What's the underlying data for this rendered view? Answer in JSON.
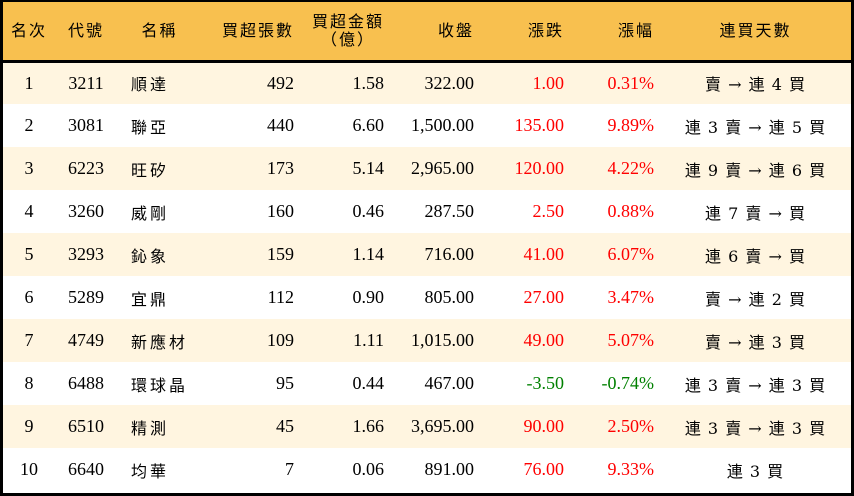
{
  "header": {
    "rank": "名次",
    "code": "代號",
    "name": "名稱",
    "net_buy_lots": "買超張數",
    "net_buy_amount_line1": "買超金額",
    "net_buy_amount_line2": "（億）",
    "close": "收盤",
    "change": "漲跌",
    "change_pct": "漲幅",
    "consecutive_days": "連買天數"
  },
  "colors": {
    "header_bg": "#f8c04f",
    "row_odd_bg": "#fff5e0",
    "row_even_bg": "#ffffff",
    "up": "#ff0000",
    "down": "#008000"
  },
  "rows": [
    {
      "rank": "1",
      "code": "3211",
      "name": "順達",
      "lots": "492",
      "amount": "1.58",
      "close": "322.00",
      "change": "1.00",
      "pct": "0.31%",
      "dir": "up",
      "streak": "賣 → 連 4 買"
    },
    {
      "rank": "2",
      "code": "3081",
      "name": "聯亞",
      "lots": "440",
      "amount": "6.60",
      "close": "1,500.00",
      "change": "135.00",
      "pct": "9.89%",
      "dir": "up",
      "streak": "連 3 賣 → 連 5 買"
    },
    {
      "rank": "3",
      "code": "6223",
      "name": "旺矽",
      "lots": "173",
      "amount": "5.14",
      "close": "2,965.00",
      "change": "120.00",
      "pct": "4.22%",
      "dir": "up",
      "streak": "連 9 賣 → 連 6 買"
    },
    {
      "rank": "4",
      "code": "3260",
      "name": "威剛",
      "lots": "160",
      "amount": "0.46",
      "close": "287.50",
      "change": "2.50",
      "pct": "0.88%",
      "dir": "up",
      "streak": "連 7 賣 → 買"
    },
    {
      "rank": "5",
      "code": "3293",
      "name": "鈊象",
      "lots": "159",
      "amount": "1.14",
      "close": "716.00",
      "change": "41.00",
      "pct": "6.07%",
      "dir": "up",
      "streak": "連 6 賣 → 買"
    },
    {
      "rank": "6",
      "code": "5289",
      "name": "宜鼎",
      "lots": "112",
      "amount": "0.90",
      "close": "805.00",
      "change": "27.00",
      "pct": "3.47%",
      "dir": "up",
      "streak": "賣 → 連 2 買"
    },
    {
      "rank": "7",
      "code": "4749",
      "name": "新應材",
      "lots": "109",
      "amount": "1.11",
      "close": "1,015.00",
      "change": "49.00",
      "pct": "5.07%",
      "dir": "up",
      "streak": "賣 → 連 3 買"
    },
    {
      "rank": "8",
      "code": "6488",
      "name": "環球晶",
      "lots": "95",
      "amount": "0.44",
      "close": "467.00",
      "change": "-3.50",
      "pct": "-0.74%",
      "dir": "down",
      "streak": "連 3 賣 → 連 3 買"
    },
    {
      "rank": "9",
      "code": "6510",
      "name": "精測",
      "lots": "45",
      "amount": "1.66",
      "close": "3,695.00",
      "change": "90.00",
      "pct": "2.50%",
      "dir": "up",
      "streak": "連 3 賣 → 連 3 買"
    },
    {
      "rank": "10",
      "code": "6640",
      "name": "均華",
      "lots": "7",
      "amount": "0.06",
      "close": "891.00",
      "change": "76.00",
      "pct": "9.33%",
      "dir": "up",
      "streak": "連 3 買"
    }
  ]
}
